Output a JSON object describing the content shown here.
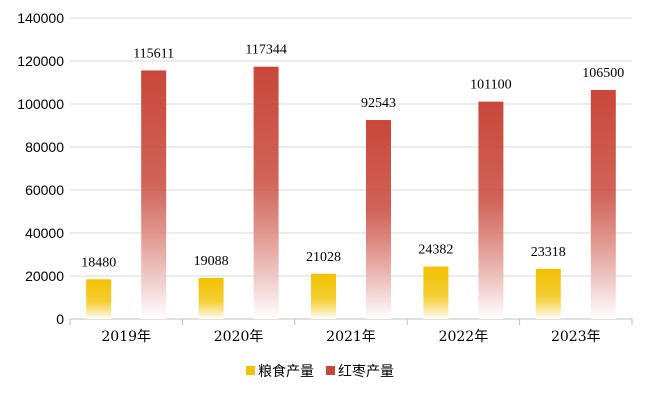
{
  "chart_data": {
    "type": "bar",
    "categories": [
      "2019年",
      "2020年",
      "2021年",
      "2022年",
      "2023年"
    ],
    "series": [
      {
        "name": "粮食产量",
        "values": [
          18480,
          19088,
          21028,
          24382,
          23318
        ],
        "color": "#f2c100"
      },
      {
        "name": "红枣产量",
        "values": [
          115611,
          117344,
          92543,
          101100,
          106500
        ],
        "color": "#c9473a"
      }
    ],
    "ylim": [
      0,
      140000
    ],
    "yticks": [
      0,
      20000,
      40000,
      60000,
      80000,
      100000,
      120000,
      140000
    ],
    "grid": true,
    "legend": "bottom",
    "title": "",
    "xlabel": "",
    "ylabel": ""
  }
}
